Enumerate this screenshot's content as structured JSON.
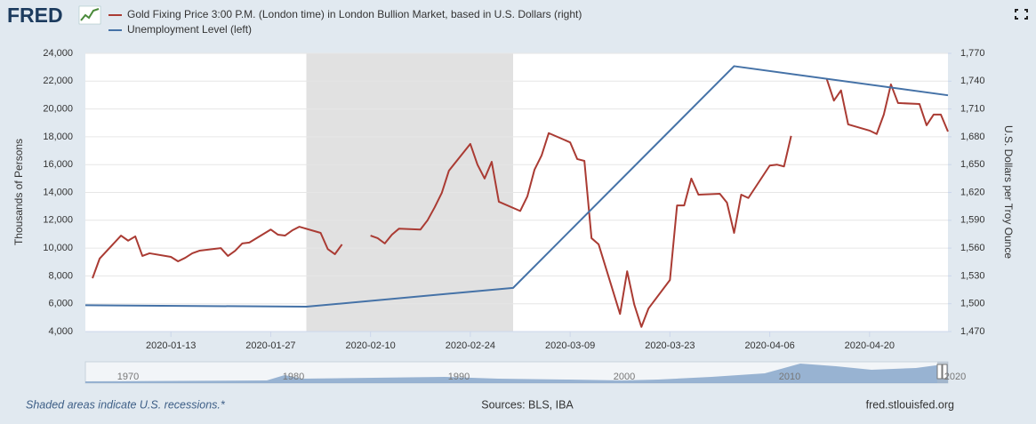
{
  "logo": "FRED",
  "chart_data": {
    "type": "line",
    "ylabel": "Thousands of Persons",
    "y2label": "U.S. Dollars per Troy Ounce",
    "xlim": [
      "2020-01-01",
      "2020-05-01"
    ],
    "xticks": [
      "2020-01-13",
      "2020-01-27",
      "2020-02-10",
      "2020-02-24",
      "2020-03-09",
      "2020-03-23",
      "2020-04-06",
      "2020-04-20"
    ],
    "ylim": [
      4000,
      24000
    ],
    "yticks": [
      {
        "value": 4000,
        "label": "4,000"
      },
      {
        "value": 6000,
        "label": "6,000"
      },
      {
        "value": 8000,
        "label": "8,000"
      },
      {
        "value": 10000,
        "label": "10,000"
      },
      {
        "value": 12000,
        "label": "12,000"
      },
      {
        "value": 14000,
        "label": "14,000"
      },
      {
        "value": 16000,
        "label": "16,000"
      },
      {
        "value": 18000,
        "label": "18,000"
      },
      {
        "value": 20000,
        "label": "20,000"
      },
      {
        "value": 22000,
        "label": "22,000"
      },
      {
        "value": 24000,
        "label": "24,000"
      }
    ],
    "y2lim": [
      1470,
      1770
    ],
    "y2ticks": [
      {
        "value": 1470,
        "label": "1,470"
      },
      {
        "value": 1500,
        "label": "1,500"
      },
      {
        "value": 1530,
        "label": "1,530"
      },
      {
        "value": 1560,
        "label": "1,560"
      },
      {
        "value": 1590,
        "label": "1,590"
      },
      {
        "value": 1620,
        "label": "1,620"
      },
      {
        "value": 1650,
        "label": "1,650"
      },
      {
        "value": 1680,
        "label": "1,680"
      },
      {
        "value": 1710,
        "label": "1,710"
      },
      {
        "value": 1740,
        "label": "1,740"
      },
      {
        "value": 1770,
        "label": "1,770"
      }
    ],
    "grid": true,
    "recessions": [
      {
        "start": "2020-02-01",
        "end": "2020-03-01"
      }
    ],
    "series": [
      {
        "name": "Gold Fixing Price 3:00 P.M. (London time) in London Bullion Market, based in U.S. Dollars (right)",
        "color": "#aa3b33",
        "axis": "y2",
        "x": [
          "2020-01-02",
          "2020-01-03",
          "2020-01-06",
          "2020-01-07",
          "2020-01-08",
          "2020-01-09",
          "2020-01-10",
          "2020-01-13",
          "2020-01-14",
          "2020-01-15",
          "2020-01-16",
          "2020-01-17",
          "2020-01-20",
          "2020-01-21",
          "2020-01-22",
          "2020-01-23",
          "2020-01-24",
          "2020-01-27",
          "2020-01-28",
          "2020-01-29",
          "2020-01-30",
          "2020-01-31",
          "2020-02-03",
          "2020-02-04",
          "2020-02-05",
          "2020-02-06",
          "2020-02-07",
          "2020-02-10",
          "2020-02-11",
          "2020-02-12",
          "2020-02-13",
          "2020-02-14",
          "2020-02-17",
          "2020-02-18",
          "2020-02-19",
          "2020-02-20",
          "2020-02-21",
          "2020-02-24",
          "2020-02-25",
          "2020-02-26",
          "2020-02-27",
          "2020-02-28",
          "2020-03-02",
          "2020-03-03",
          "2020-03-04",
          "2020-03-05",
          "2020-03-06",
          "2020-03-09",
          "2020-03-10",
          "2020-03-11",
          "2020-03-12",
          "2020-03-13",
          "2020-03-16",
          "2020-03-17",
          "2020-03-18",
          "2020-03-19",
          "2020-03-20",
          "2020-03-23",
          "2020-03-24",
          "2020-03-25",
          "2020-03-26",
          "2020-03-27",
          "2020-03-30",
          "2020-03-31",
          "2020-04-01",
          "2020-04-02",
          "2020-04-03",
          "2020-04-06",
          "2020-04-07",
          "2020-04-08",
          "2020-04-09",
          "2020-04-10",
          "2020-04-13",
          "2020-04-14",
          "2020-04-15",
          "2020-04-16",
          "2020-04-17",
          "2020-04-20",
          "2020-04-21",
          "2020-04-22",
          "2020-04-23",
          "2020-04-24",
          "2020-04-27",
          "2020-04-28",
          "2020-04-29",
          "2020-04-30",
          "2020-05-01"
        ],
        "values": [
          1527.5,
          1548.6,
          1573.5,
          1568,
          1572.6,
          1551.5,
          1554.4,
          1550.5,
          1545.7,
          1549.5,
          1554.4,
          1557.2,
          1560,
          1551.5,
          1557,
          1565,
          1566,
          1580,
          1574.5,
          1573.5,
          1579,
          1583,
          1576.4,
          1559,
          1553.4,
          1564,
          null,
          1573.5,
          1570.7,
          1565,
          1574.5,
          1581,
          1580,
          1590,
          1604,
          1619.6,
          1643.5,
          1672.3,
          1650,
          1635,
          1653,
          1610,
          1600,
          1615.7,
          1644.5,
          1660,
          1684,
          1674,
          1656,
          1654,
          1570.7,
          1564,
          1489,
          1535,
          1499,
          1475,
          1495,
          1525.6,
          1606,
          1606,
          1635,
          1617.6,
          1618.6,
          1609,
          1576.4,
          1617.6,
          1614,
          1649,
          1650,
          1648,
          1681,
          null,
          null,
          1742.3,
          1719,
          1730,
          1693.4,
          1686.7,
          1683,
          1704,
          1736.5,
          1716.4,
          1715.4,
          1692.4,
          1704,
          1704,
          1685.7
        ]
      },
      {
        "name": "Unemployment Level (left)",
        "color": "#4572a7",
        "axis": "y",
        "x": [
          "2020-01-01",
          "2020-02-01",
          "2020-03-01",
          "2020-04-01",
          "2020-05-01"
        ],
        "values": [
          5892,
          5787,
          7140,
          23078,
          20985
        ]
      }
    ],
    "navigator": {
      "labels": [
        "1970",
        "1980",
        "1990",
        "2000",
        "2010",
        "2020"
      ]
    },
    "footer": {
      "note": "Shaded areas indicate U.S. recessions.*",
      "sources": "Sources: BLS, IBA",
      "site": "fred.stlouisfed.org"
    }
  }
}
